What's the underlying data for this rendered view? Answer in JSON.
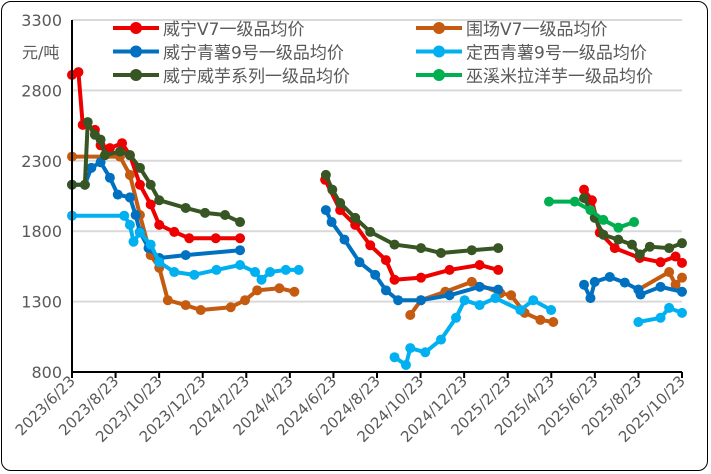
{
  "chart_data": {
    "type": "line",
    "title": "",
    "xlabel": "",
    "ylabel": "元/吨",
    "ylim": [
      800,
      3300
    ],
    "yticks": [
      800,
      1300,
      1800,
      2300,
      2800,
      3300
    ],
    "xlim": [
      "2023-06-23",
      "2025-10-23"
    ],
    "xticks": [
      "2023/6/23",
      "2023/8/23",
      "2023/10/23",
      "2023/12/23",
      "2024/2/23",
      "2024/4/23",
      "2024/6/23",
      "2024/8/23",
      "2024/10/23",
      "2024/12/23",
      "2025/2/23",
      "2025/4/23",
      "2025/6/23",
      "2025/8/23",
      "2025/10/23"
    ],
    "grid": "horizontal",
    "legend_placement": "top",
    "series": [
      {
        "name": "威宁V7一级品均价",
        "color": "#ee0000",
        "segments": [
          [
            [
              "2023-06-23",
              2910
            ],
            [
              "2023-07-02",
              2930
            ],
            [
              "2023-07-08",
              2555
            ],
            [
              "2023-07-25",
              2520
            ],
            [
              "2023-08-02",
              2410
            ],
            [
              "2023-08-15",
              2390
            ],
            [
              "2023-09-01",
              2425
            ],
            [
              "2023-09-12",
              2340
            ],
            [
              "2023-09-26",
              2130
            ],
            [
              "2023-10-11",
              1990
            ],
            [
              "2023-10-23",
              1845
            ],
            [
              "2023-11-13",
              1795
            ],
            [
              "2023-12-04",
              1750
            ],
            [
              "2024-01-10",
              1750
            ],
            [
              "2024-02-13",
              1750
            ]
          ],
          [
            [
              "2024-06-11",
              2165
            ],
            [
              "2024-07-02",
              1950
            ],
            [
              "2024-07-23",
              1845
            ],
            [
              "2024-08-13",
              1700
            ],
            [
              "2024-09-04",
              1595
            ],
            [
              "2024-09-16",
              1455
            ],
            [
              "2024-10-23",
              1470
            ],
            [
              "2024-12-02",
              1525
            ],
            [
              "2025-01-13",
              1560
            ],
            [
              "2025-02-08",
              1525
            ]
          ],
          [
            [
              "2025-06-08",
              2095
            ],
            [
              "2025-06-19",
              2020
            ],
            [
              "2025-06-30",
              1790
            ],
            [
              "2025-07-21",
              1680
            ],
            [
              "2025-08-25",
              1610
            ],
            [
              "2025-09-23",
              1580
            ],
            [
              "2025-10-14",
              1620
            ],
            [
              "2025-10-23",
              1575
            ]
          ]
        ]
      },
      {
        "name": "围场V7一级品均价",
        "color": "#c55a11",
        "segments": [
          [
            [
              "2023-06-23",
              2330
            ],
            [
              "2023-08-29",
              2330
            ],
            [
              "2023-09-12",
              2200
            ],
            [
              "2023-09-26",
              1915
            ],
            [
              "2023-10-11",
              1630
            ],
            [
              "2023-10-23",
              1540
            ],
            [
              "2023-11-04",
              1310
            ],
            [
              "2023-11-29",
              1275
            ],
            [
              "2023-12-20",
              1240
            ],
            [
              "2024-01-31",
              1260
            ],
            [
              "2024-02-20",
              1310
            ],
            [
              "2024-03-08",
              1380
            ],
            [
              "2024-04-08",
              1395
            ],
            [
              "2024-04-29",
              1370
            ]
          ],
          [
            [
              "2024-10-08",
              1205
            ],
            [
              "2024-10-23",
              1310
            ],
            [
              "2024-11-26",
              1370
            ],
            [
              "2025-01-02",
              1440
            ],
            [
              "2025-02-11",
              1360
            ],
            [
              "2025-02-26",
              1345
            ],
            [
              "2025-03-17",
              1220
            ],
            [
              "2025-04-08",
              1170
            ],
            [
              "2025-04-26",
              1155
            ]
          ],
          [
            [
              "2025-08-23",
              1385
            ],
            [
              "2025-10-05",
              1510
            ],
            [
              "2025-10-14",
              1420
            ],
            [
              "2025-10-23",
              1470
            ]
          ]
        ]
      },
      {
        "name": "威宁青薯9号一级品均价",
        "color": "#0070c0",
        "segments": [
          [
            [
              "2023-06-23",
              2130
            ],
            [
              "2023-07-11",
              2130
            ],
            [
              "2023-07-20",
              2250
            ],
            [
              "2023-08-02",
              2290
            ],
            [
              "2023-08-15",
              2180
            ],
            [
              "2023-08-26",
              2060
            ],
            [
              "2023-09-12",
              2040
            ],
            [
              "2023-09-20",
              1915
            ],
            [
              "2023-09-26",
              1795
            ],
            [
              "2023-10-08",
              1680
            ],
            [
              "2023-10-23",
              1610
            ],
            [
              "2023-11-29",
              1630
            ],
            [
              "2024-02-13",
              1665
            ]
          ],
          [
            [
              "2024-06-12",
              1950
            ],
            [
              "2024-06-20",
              1865
            ],
            [
              "2024-07-08",
              1740
            ],
            [
              "2024-07-29",
              1580
            ],
            [
              "2024-08-20",
              1490
            ],
            [
              "2024-09-04",
              1380
            ],
            [
              "2024-09-21",
              1310
            ],
            [
              "2024-10-23",
              1310
            ],
            [
              "2024-12-02",
              1345
            ],
            [
              "2025-01-13",
              1405
            ],
            [
              "2025-02-08",
              1385
            ]
          ],
          [
            [
              "2025-06-08",
              1420
            ],
            [
              "2025-06-17",
              1325
            ],
            [
              "2025-06-23",
              1440
            ],
            [
              "2025-07-14",
              1475
            ],
            [
              "2025-08-04",
              1435
            ],
            [
              "2025-08-23",
              1385
            ],
            [
              "2025-08-26",
              1350
            ],
            [
              "2025-09-23",
              1405
            ],
            [
              "2025-10-23",
              1370
            ]
          ]
        ]
      },
      {
        "name": "定西青薯9号一级品均价",
        "color": "#00b0f0",
        "segments": [
          [
            [
              "2023-06-23",
              1910
            ],
            [
              "2023-09-04",
              1910
            ],
            [
              "2023-09-12",
              1845
            ],
            [
              "2023-09-17",
              1725
            ],
            [
              "2023-09-26",
              1790
            ],
            [
              "2023-10-11",
              1705
            ],
            [
              "2023-10-23",
              1580
            ],
            [
              "2023-11-13",
              1510
            ],
            [
              "2023-12-11",
              1490
            ],
            [
              "2024-01-11",
              1525
            ],
            [
              "2024-02-13",
              1560
            ],
            [
              "2024-03-05",
              1510
            ],
            [
              "2024-03-14",
              1455
            ],
            [
              "2024-03-26",
              1510
            ],
            [
              "2024-04-17",
              1525
            ],
            [
              "2024-05-05",
              1525
            ]
          ],
          [
            [
              "2024-09-16",
              905
            ],
            [
              "2024-10-02",
              850
            ],
            [
              "2024-10-08",
              970
            ],
            [
              "2024-10-29",
              940
            ],
            [
              "2024-11-20",
              1030
            ],
            [
              "2024-12-11",
              1185
            ],
            [
              "2024-12-23",
              1310
            ],
            [
              "2025-01-13",
              1275
            ],
            [
              "2025-02-04",
              1325
            ],
            [
              "2025-03-11",
              1240
            ],
            [
              "2025-03-29",
              1310
            ],
            [
              "2025-04-23",
              1240
            ]
          ],
          [
            [
              "2025-08-23",
              1155
            ],
            [
              "2025-09-23",
              1185
            ],
            [
              "2025-10-05",
              1255
            ],
            [
              "2025-10-23",
              1220
            ]
          ]
        ]
      },
      {
        "name": "威宁威芋系列一级品均价",
        "color": "#375623",
        "segments": [
          [
            [
              "2023-06-23",
              2130
            ],
            [
              "2023-07-11",
              2130
            ],
            [
              "2023-07-15",
              2575
            ],
            [
              "2023-07-25",
              2485
            ],
            [
              "2023-08-02",
              2450
            ],
            [
              "2023-08-08",
              2340
            ],
            [
              "2023-08-29",
              2365
            ],
            [
              "2023-09-12",
              2340
            ],
            [
              "2023-09-26",
              2250
            ],
            [
              "2023-10-11",
              2130
            ],
            [
              "2023-10-23",
              2020
            ],
            [
              "2023-11-29",
              1965
            ],
            [
              "2023-12-26",
              1930
            ],
            [
              "2024-01-23",
              1915
            ],
            [
              "2024-02-13",
              1865
            ]
          ],
          [
            [
              "2024-06-12",
              2200
            ],
            [
              "2024-06-21",
              2095
            ],
            [
              "2024-07-02",
              2000
            ],
            [
              "2024-07-23",
              1895
            ],
            [
              "2024-08-13",
              1795
            ],
            [
              "2024-09-16",
              1705
            ],
            [
              "2024-10-23",
              1680
            ],
            [
              "2024-11-20",
              1645
            ],
            [
              "2025-01-02",
              1665
            ],
            [
              "2025-02-08",
              1680
            ]
          ],
          [
            [
              "2025-06-08",
              2035
            ],
            [
              "2025-06-23",
              1895
            ],
            [
              "2025-07-05",
              1775
            ],
            [
              "2025-07-26",
              1740
            ],
            [
              "2025-08-14",
              1705
            ],
            [
              "2025-08-25",
              1635
            ],
            [
              "2025-09-08",
              1690
            ],
            [
              "2025-10-05",
              1680
            ],
            [
              "2025-10-23",
              1715
            ]
          ]
        ]
      },
      {
        "name": "巫溪米拉洋芋一级品均价",
        "color": "#00b050",
        "segments": [
          [
            [
              "2025-04-20",
              2010
            ],
            [
              "2025-05-26",
              2010
            ],
            [
              "2025-06-17",
              1950
            ],
            [
              "2025-07-05",
              1880
            ],
            [
              "2025-07-26",
              1825
            ],
            [
              "2025-08-17",
              1865
            ]
          ]
        ]
      }
    ]
  }
}
